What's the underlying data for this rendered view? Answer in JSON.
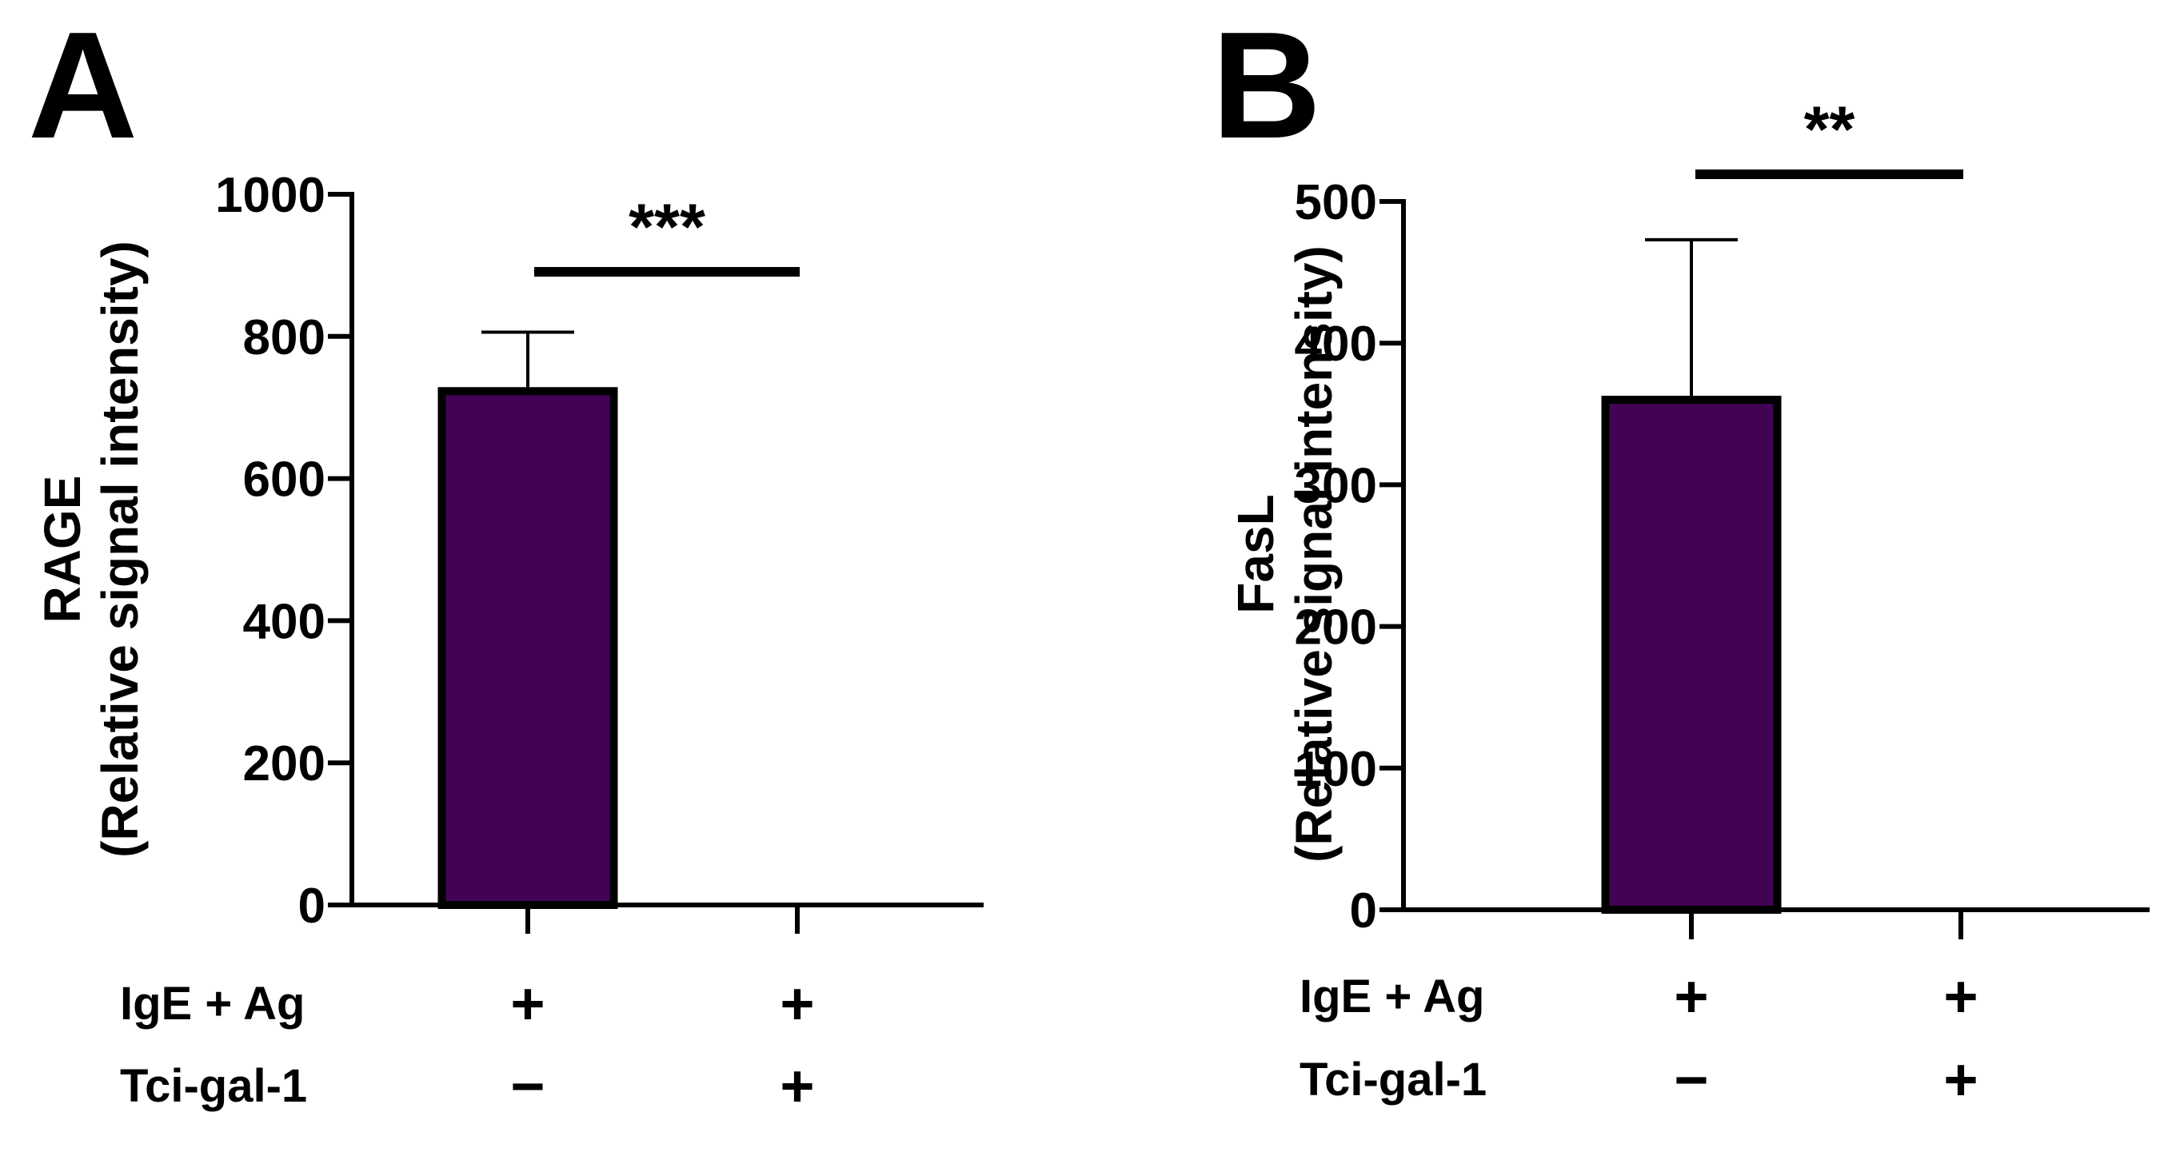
{
  "chart_data": [
    {
      "panel": "A",
      "type": "bar",
      "ylabel_line1": "RAGE",
      "ylabel_line2": "(Relative signal intensity)",
      "ylim": [
        0,
        1000
      ],
      "yticks": [
        "0",
        "200",
        "400",
        "600",
        "800",
        "1000"
      ],
      "ytick_values": [
        0,
        200,
        400,
        600,
        800,
        1000
      ],
      "categories": [
        "IgE+Ag / -",
        "IgE+Ag / Tci-gal-1"
      ],
      "values": [
        723,
        0
      ],
      "errors": [
        83,
        0
      ],
      "significance": "***",
      "row_labels": [
        "IgE + Ag",
        "Tci-gal-1"
      ],
      "conditions": [
        [
          "+",
          "−"
        ],
        [
          "+",
          "+"
        ]
      ]
    },
    {
      "panel": "B",
      "type": "bar",
      "ylabel_line1": "FasL",
      "ylabel_line2": "(Relative signal intensity)",
      "ylim": [
        0,
        500
      ],
      "yticks": [
        "0",
        "100",
        "200",
        "300",
        "400",
        "500"
      ],
      "ytick_values": [
        0,
        100,
        200,
        300,
        400,
        500
      ],
      "categories": [
        "IgE+Ag / -",
        "IgE+Ag / Tci-gal-1"
      ],
      "values": [
        360,
        0
      ],
      "errors": [
        113,
        0
      ],
      "significance": "**",
      "row_labels": [
        "IgE + Ag",
        "Tci-gal-1"
      ],
      "conditions": [
        [
          "+",
          "−"
        ],
        [
          "+",
          "+"
        ]
      ]
    }
  ],
  "colors": {
    "bar_fill": "#420355",
    "ink": "#000000"
  }
}
